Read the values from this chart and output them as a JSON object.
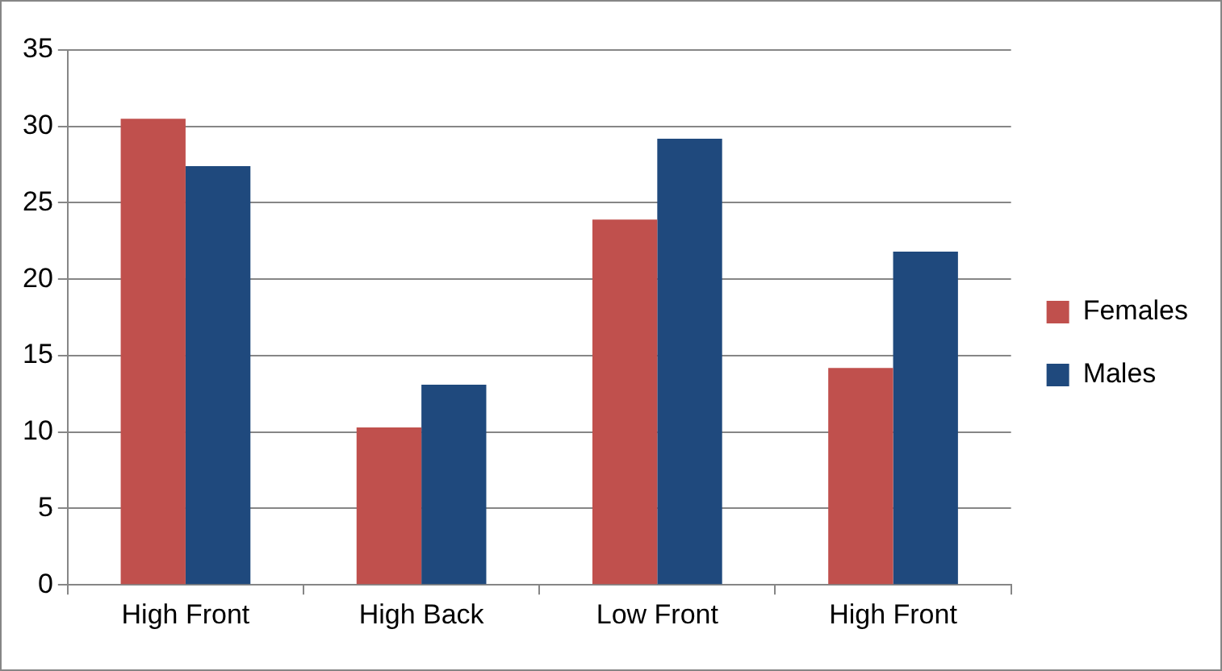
{
  "chart_data": {
    "type": "bar",
    "categories": [
      "High Front",
      "High Back",
      "Low Front",
      "High Front"
    ],
    "series": [
      {
        "name": "Females",
        "color": "#c0504d",
        "values": [
          30.5,
          10.3,
          23.9,
          14.2
        ]
      },
      {
        "name": "Males",
        "color": "#1f497d",
        "values": [
          27.4,
          13.1,
          29.2,
          21.8
        ]
      }
    ],
    "ylim": [
      0,
      35
    ],
    "yticks": [
      0,
      5,
      10,
      15,
      20,
      25,
      30,
      35
    ],
    "grid": "y",
    "legend": "right"
  }
}
